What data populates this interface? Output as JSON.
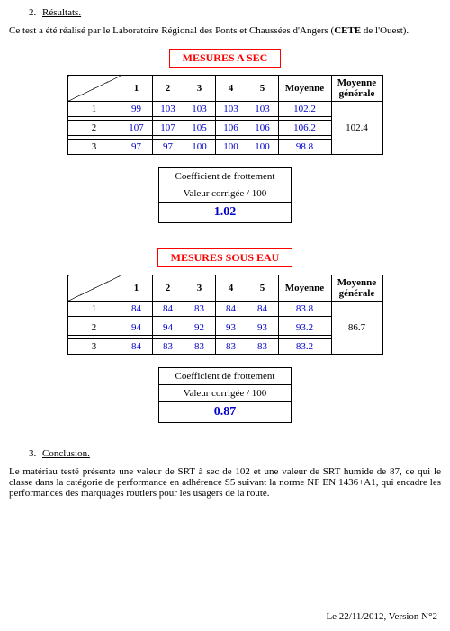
{
  "sections": {
    "results_num": "2.",
    "results_label": "Résultats.",
    "conclusion_num": "3.",
    "conclusion_label": "Conclusion."
  },
  "intro_para": "Ce test a été réalisé par le Laboratoire Régional des Ponts et Chaussées d'Angers (CETE de l'Ouest).",
  "title_dry": "MESURES A SEC",
  "title_wet": "MESURES SOUS EAU",
  "table_headers": {
    "c1": "1",
    "c2": "2",
    "c3": "3",
    "c4": "4",
    "c5": "5",
    "moyenne": "Moyenne",
    "moyenne_gen_l1": "Moyenne",
    "moyenne_gen_l2": "générale"
  },
  "dry": {
    "rows": [
      {
        "h": "1",
        "v": [
          "99",
          "103",
          "103",
          "103",
          "103"
        ],
        "moy": "102.2"
      },
      {
        "h": "2",
        "v": [
          "107",
          "107",
          "105",
          "106",
          "106"
        ],
        "moy": "106.2"
      },
      {
        "h": "3",
        "v": [
          "97",
          "97",
          "100",
          "100",
          "100"
        ],
        "moy": "98.8"
      }
    ],
    "general": "102.4"
  },
  "wet": {
    "rows": [
      {
        "h": "1",
        "v": [
          "84",
          "84",
          "83",
          "84",
          "84"
        ],
        "moy": "83.8"
      },
      {
        "h": "2",
        "v": [
          "94",
          "94",
          "92",
          "93",
          "93"
        ],
        "moy": "93.2"
      },
      {
        "h": "3",
        "v": [
          "84",
          "83",
          "83",
          "83",
          "83"
        ],
        "moy": "83.2"
      }
    ],
    "general": "86.7"
  },
  "coef": {
    "l1": "Coefficient de frottement",
    "l2": "Valeur corrigée / 100",
    "dry": "1.02",
    "wet": "0.87"
  },
  "conclusion_para": "Le matériau testé présente une valeur de SRT à sec de 102 et une valeur de SRT humide de 87, ce qui le classe dans la catégorie de performance en adhérence S5 suivant la norme NF EN 1436+A1, qui encadre les performances des marquages routiers pour les usagers de la route.",
  "footer": "Le 22/11/2012, Version N°2",
  "colors": {
    "accent": "#ff0000",
    "value": "#0000cc",
    "text": "#000000",
    "bg": "#ffffff"
  }
}
